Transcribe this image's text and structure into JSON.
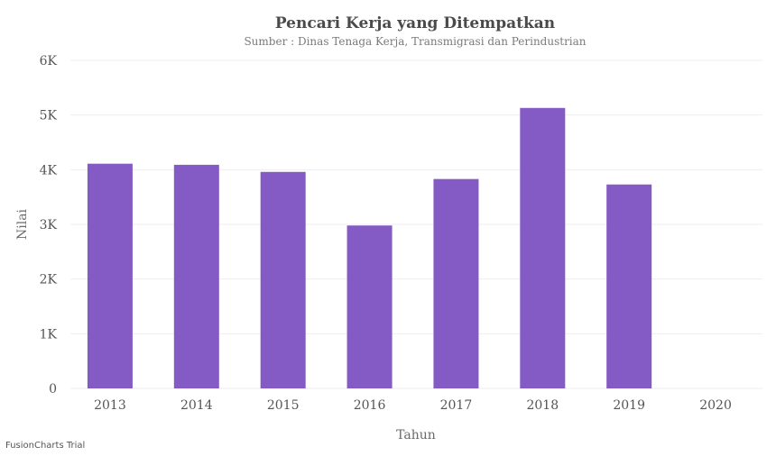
{
  "chart_data": {
    "type": "bar",
    "title": "Pencari Kerja yang Ditempatkan",
    "subtitle": "Sumber : Dinas Tenaga Kerja, Transmigrasi dan Perindustrian",
    "xlabel": "Tahun",
    "ylabel": "Nilai",
    "categories": [
      "2013",
      "2014",
      "2015",
      "2016",
      "2017",
      "2018",
      "2019",
      "2020"
    ],
    "values": [
      4110,
      4090,
      3960,
      2980,
      3830,
      5130,
      3730,
      null
    ],
    "ylim": [
      0,
      6000
    ],
    "yticks": [
      0,
      1000,
      2000,
      3000,
      4000,
      5000,
      6000
    ],
    "ytick_labels": [
      "0",
      "1K",
      "2K",
      "3K",
      "4K",
      "5K",
      "6K"
    ],
    "grid": true,
    "bar_color": "#845bc4",
    "gridline_color": "#eeeeee"
  },
  "watermark": "FusionCharts Trial"
}
